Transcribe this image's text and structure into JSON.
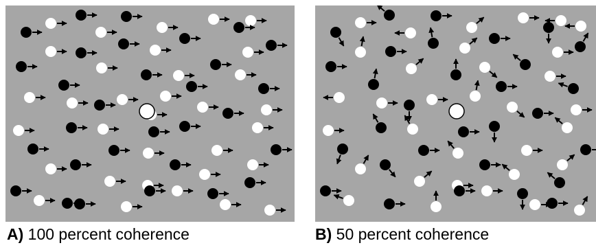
{
  "panels": [
    {
      "letter": "A)",
      "text": "100 percent coherence",
      "coherence": 100
    },
    {
      "letter": "B)",
      "text": "50 percent coherence",
      "coherence": 50
    }
  ],
  "colors": {
    "background": "#a6a6a6",
    "dark_dot": "#000000",
    "light_dot": "#ffffff",
    "arrow": "#000000",
    "fixation": "#ffffff"
  }
}
